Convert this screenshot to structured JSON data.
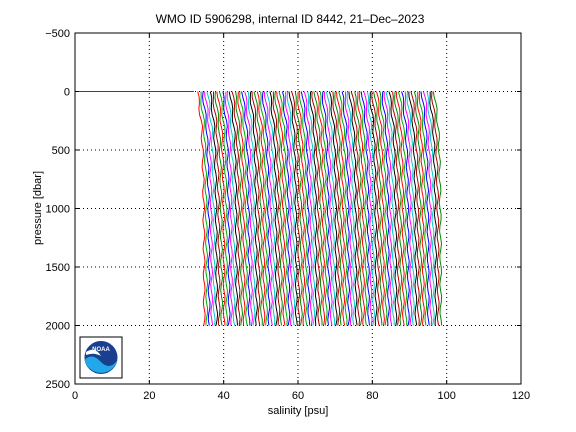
{
  "chart_data": {
    "type": "line",
    "title": "WMO ID 5906298, internal ID 8442, 21–Dec–2023",
    "xlabel": "salinity [psu]",
    "ylabel": "pressure [dbar]",
    "xlim": [
      0,
      120
    ],
    "ylim": [
      2500,
      -500
    ],
    "y_reversed": true,
    "grid": true,
    "x_ticks": [
      0,
      20,
      40,
      60,
      80,
      100,
      120
    ],
    "y_ticks": [
      -500,
      0,
      500,
      1000,
      1500,
      2000,
      2500
    ],
    "x_tick_labels": [
      "0",
      "20",
      "40",
      "60",
      "80",
      "100",
      "120"
    ],
    "y_tick_labels": [
      "−500",
      "0",
      "500",
      "1000",
      "1500",
      "2000",
      "2500"
    ],
    "profiles": {
      "count": 96,
      "salinity_offset_step": 0.67,
      "base_surface_salinity": 33.0,
      "base_deep_salinity": 34.8,
      "max_pressure": 2000,
      "surface_line": {
        "x": [
          0,
          32
        ],
        "pressure": 0
      }
    },
    "colors": [
      "#ff0000",
      "#00aa00",
      "#0000ff",
      "#ff00ff",
      "#00cccc",
      "#000000",
      "#aa0000",
      "#008800"
    ],
    "logo": {
      "name": "noaa-logo",
      "text": "NOAA"
    }
  }
}
